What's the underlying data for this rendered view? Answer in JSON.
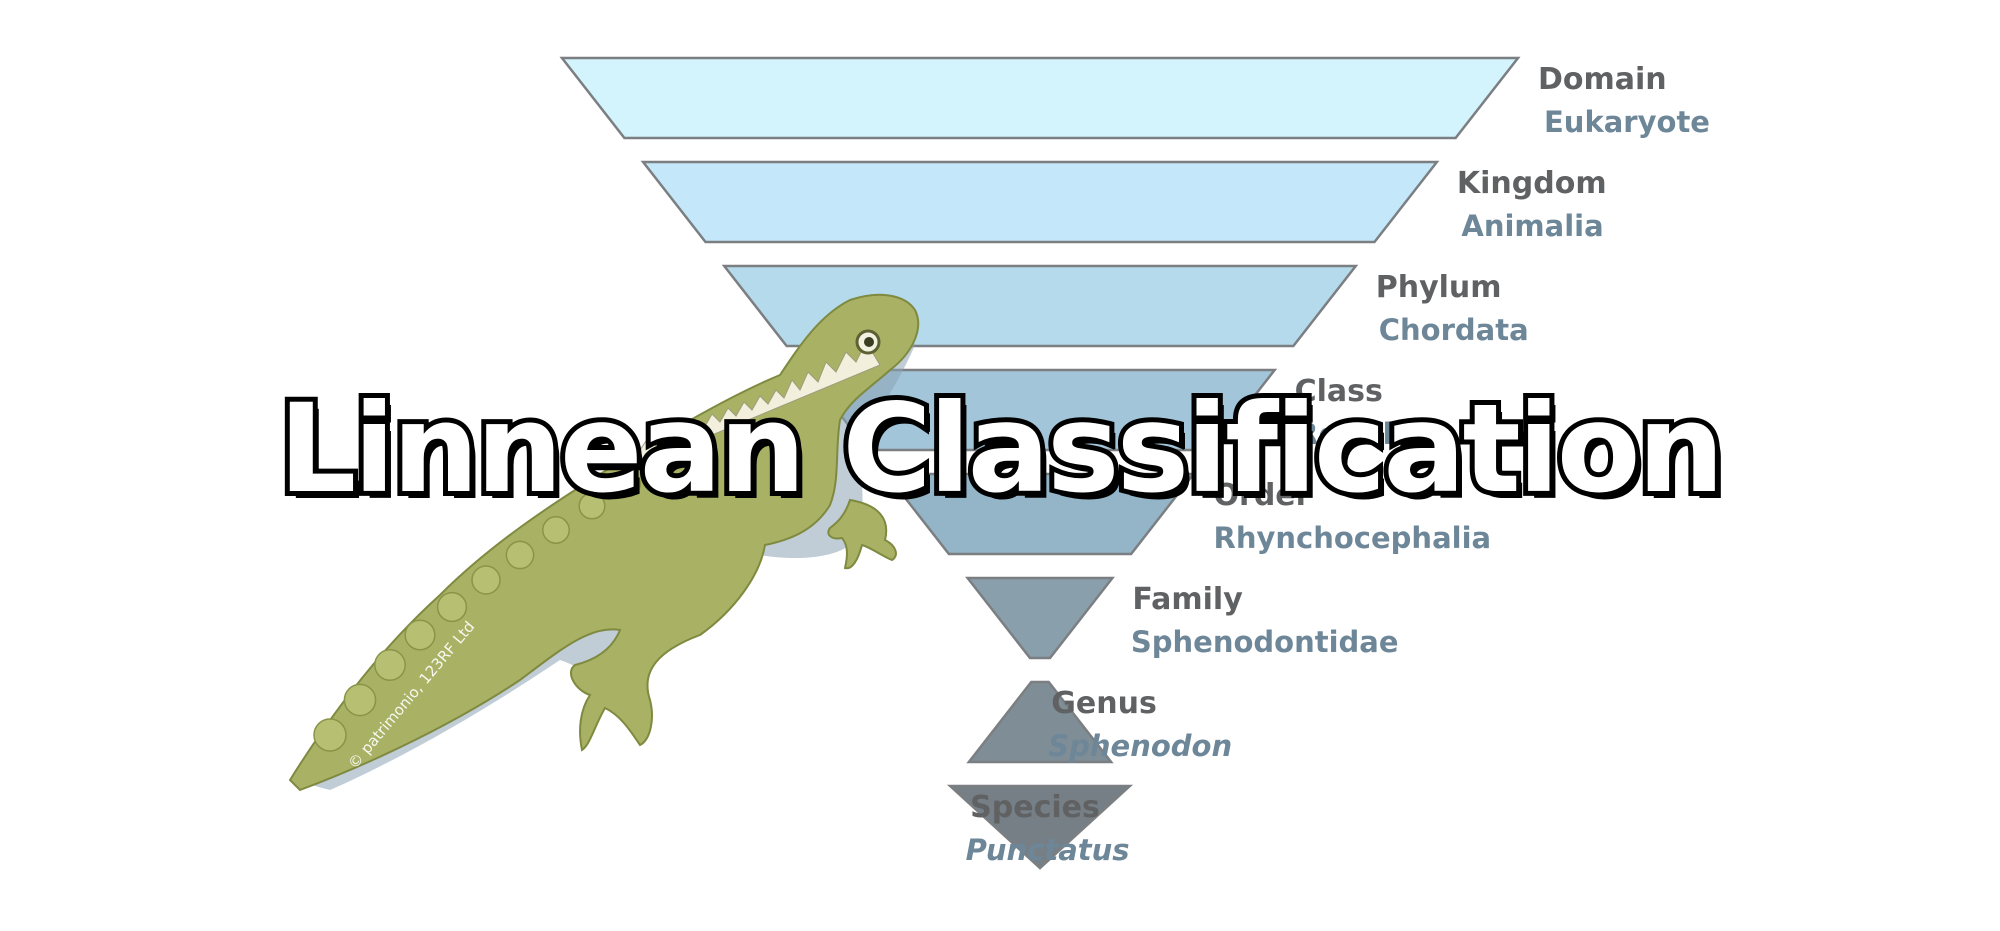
{
  "title": "Linnean Classification",
  "credit": "© patrimonio, 123RF Ltd",
  "levels": [
    {
      "rank": "Domain",
      "taxon": "Eukaryote",
      "italic": false,
      "color": "#d3f3fd"
    },
    {
      "rank": "Kingdom",
      "taxon": "Animalia",
      "italic": false,
      "color": "#c4e8f9"
    },
    {
      "rank": "Phylum",
      "taxon": "Chordata",
      "italic": false,
      "color": "#b5daeb"
    },
    {
      "rank": "Class",
      "taxon": "Reptilia",
      "italic": false,
      "color": "#a3c5da"
    },
    {
      "rank": "Order",
      "taxon": "Rhynchocephalia",
      "italic": false,
      "color": "#94b4c8"
    },
    {
      "rank": "Family",
      "taxon": "Sphenodontidae",
      "italic": false,
      "color": "#8a9fac"
    },
    {
      "rank": "Genus",
      "taxon": "Sphenodon",
      "italic": true,
      "color": "#7f8d96"
    },
    {
      "rank": "Species",
      "taxon": "Punctatus",
      "italic": true,
      "color": "#767f85"
    }
  ],
  "illustration": {
    "subject": "tuatara-lizard",
    "body_color": "#a9b264",
    "shadow_color": "#8da3b5"
  }
}
